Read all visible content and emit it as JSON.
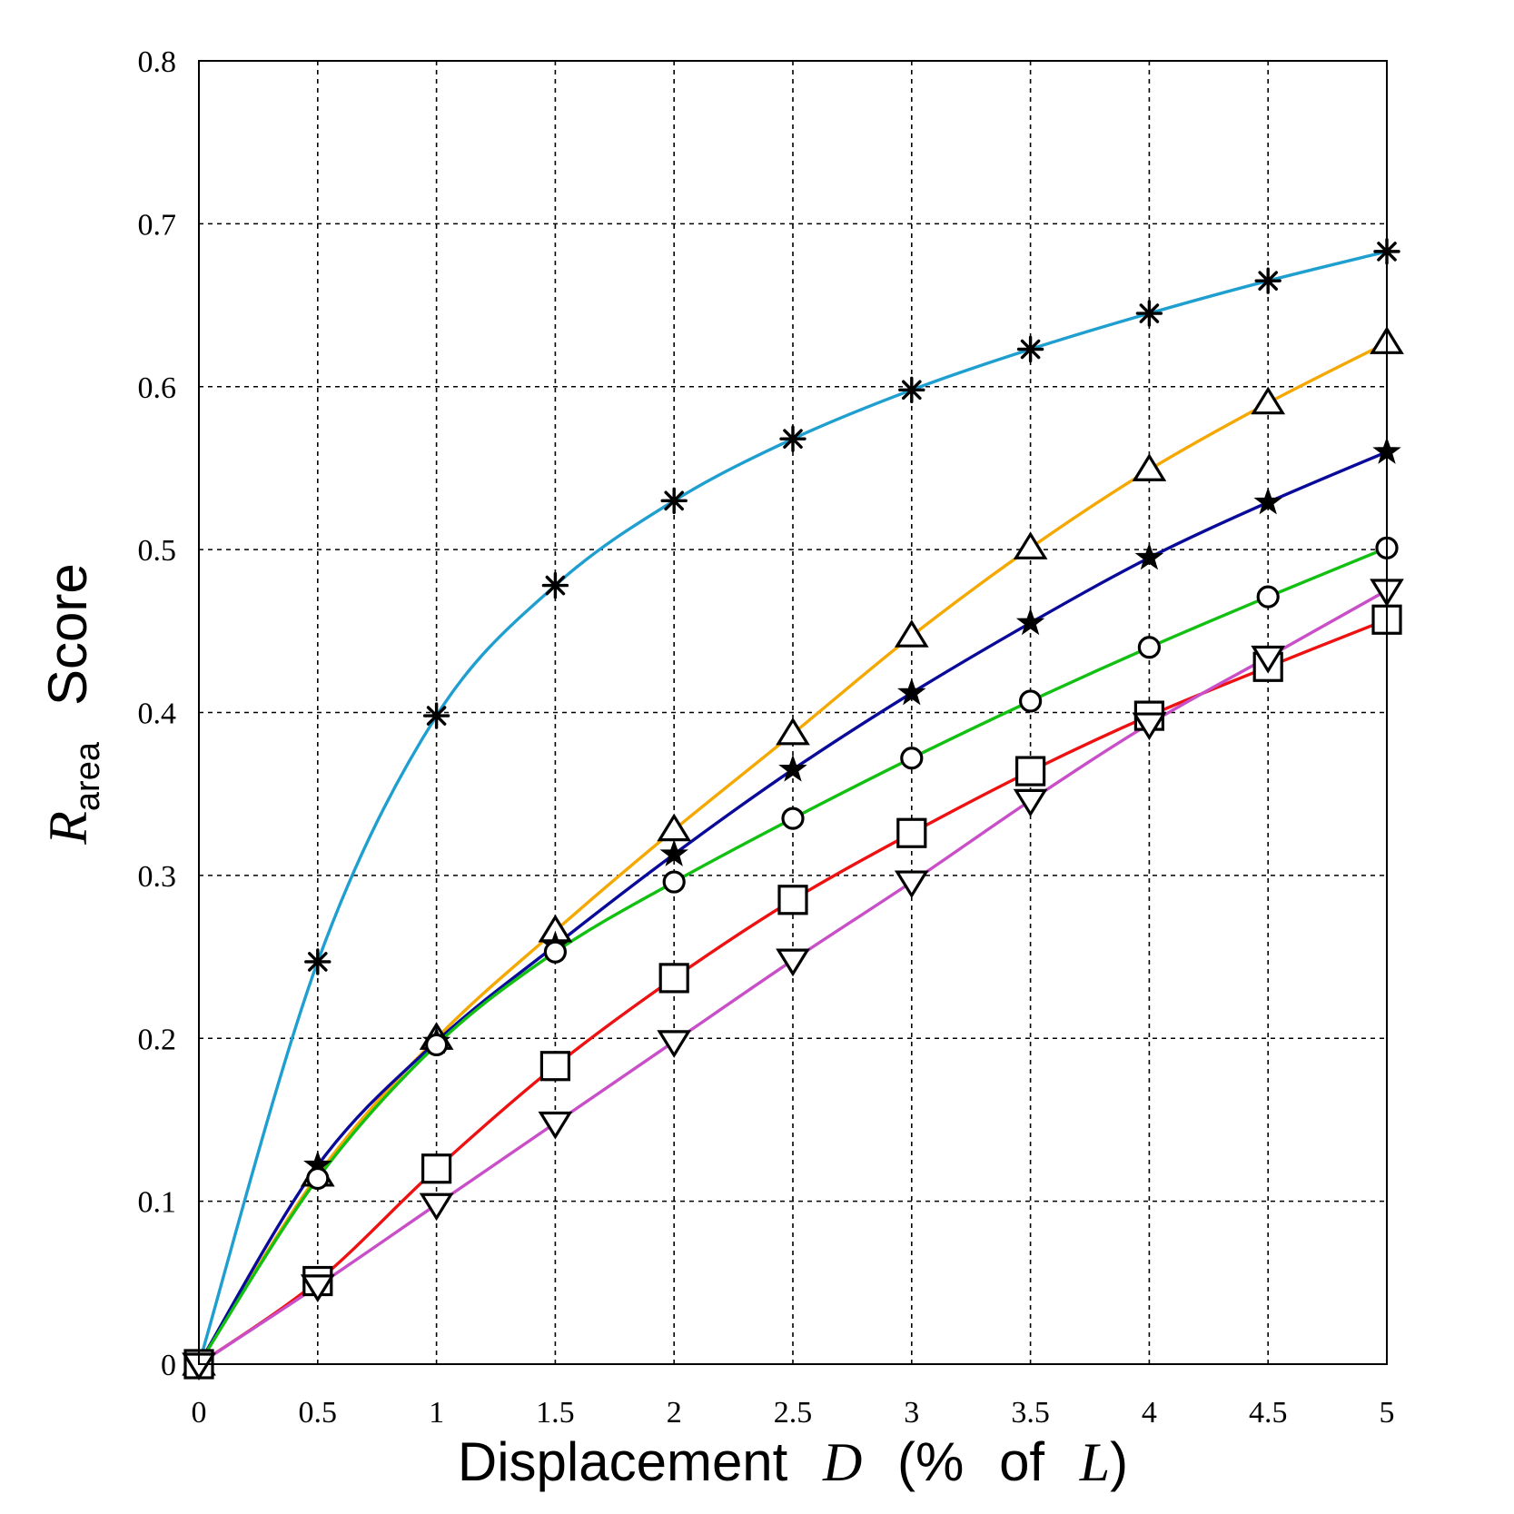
{
  "chart_data": {
    "type": "line",
    "title": "",
    "xlabel": "Displacement D (% of L)",
    "xlabel_parts": {
      "word": "Displacement",
      "var1": "D",
      "open": "(%",
      "of": "of",
      "var2": "L",
      "close": ")"
    },
    "ylabel": "R_area Score",
    "ylabel_parts": {
      "var": "R",
      "sub": "area",
      "word": "Score"
    },
    "xlim": [
      0,
      5
    ],
    "ylim": [
      0,
      0.8
    ],
    "grid": true,
    "legend": "none",
    "x_ticks": [
      "0",
      "0.5",
      "1",
      "1.5",
      "2",
      "2.5",
      "3",
      "3.5",
      "4",
      "4.5",
      "5"
    ],
    "y_ticks": [
      "0",
      "0.1",
      "0.2",
      "0.3",
      "0.4",
      "0.5",
      "0.6",
      "0.7",
      "0.8"
    ],
    "x": [
      0,
      0.5,
      1,
      1.5,
      2,
      2.5,
      3,
      3.5,
      4,
      4.5,
      5
    ],
    "series": [
      {
        "marker": "asterisk",
        "color": "#1f9fd0",
        "values": [
          0,
          0.247,
          0.398,
          0.478,
          0.53,
          0.568,
          0.598,
          0.623,
          0.645,
          0.665,
          0.683
        ]
      },
      {
        "marker": "triangle-up",
        "color": "#f5a800",
        "values": [
          0,
          0.116,
          0.2,
          0.266,
          0.328,
          0.387,
          0.447,
          0.501,
          0.549,
          0.59,
          0.627
        ]
      },
      {
        "marker": "star",
        "color": "#0a0a9a",
        "values": [
          0,
          0.122,
          0.198,
          0.257,
          0.313,
          0.365,
          0.412,
          0.455,
          0.495,
          0.529,
          0.56
        ]
      },
      {
        "marker": "circle",
        "color": "#11c011",
        "values": [
          0,
          0.114,
          0.196,
          0.253,
          0.296,
          0.335,
          0.372,
          0.407,
          0.44,
          0.471,
          0.501
        ]
      },
      {
        "marker": "square",
        "color": "#ee1111",
        "values": [
          0,
          0.051,
          0.12,
          0.183,
          0.237,
          0.285,
          0.326,
          0.364,
          0.398,
          0.428,
          0.457
        ]
      },
      {
        "marker": "triangle-down",
        "color": "#c84fc8",
        "values": [
          0,
          0.048,
          0.098,
          0.148,
          0.198,
          0.248,
          0.296,
          0.346,
          0.393,
          0.434,
          0.475
        ]
      }
    ]
  }
}
